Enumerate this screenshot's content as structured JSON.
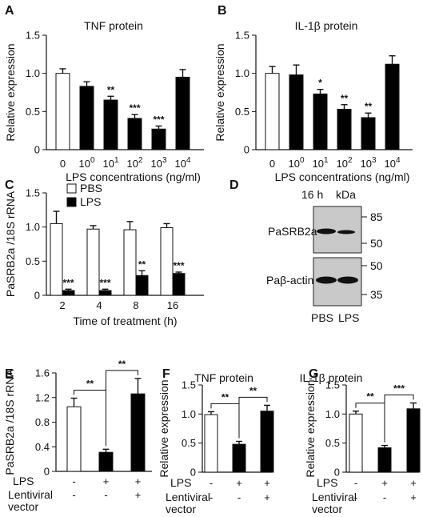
{
  "chart_data": [
    {
      "panel": "A",
      "type": "bar",
      "title": "TNF protein",
      "ylabel": "Relative expression",
      "xlabel": "LPS concentrations (ng/ml)",
      "categories": [
        "0",
        "10^0",
        "10^1",
        "10^2",
        "10^3",
        "10^4"
      ],
      "values": [
        1.0,
        0.83,
        0.65,
        0.41,
        0.27,
        0.95
      ],
      "errors": [
        0.06,
        0.06,
        0.05,
        0.05,
        0.04,
        0.1
      ],
      "fills": [
        "#ffffff",
        "#000000",
        "#000000",
        "#000000",
        "#000000",
        "#000000"
      ],
      "significance": [
        "",
        "",
        "**",
        "***",
        "***",
        ""
      ],
      "ylim": [
        0,
        1.5
      ],
      "yticks": [
        "0",
        "0.5",
        "1.0",
        "1.5"
      ]
    },
    {
      "panel": "B",
      "type": "bar",
      "title": "IL-1β protein",
      "ylabel": "Relative expression",
      "xlabel": "LPS concentrations (ng/ml)",
      "categories": [
        "0",
        "10^0",
        "10^1",
        "10^2",
        "10^3",
        "10^4"
      ],
      "values": [
        1.0,
        0.98,
        0.73,
        0.53,
        0.42,
        1.12
      ],
      "errors": [
        0.09,
        0.13,
        0.06,
        0.06,
        0.06,
        0.11
      ],
      "fills": [
        "#ffffff",
        "#000000",
        "#000000",
        "#000000",
        "#000000",
        "#000000"
      ],
      "significance": [
        "",
        "",
        "*",
        "**",
        "**",
        ""
      ],
      "ylim": [
        0,
        1.5
      ],
      "yticks": [
        "0",
        "0.5",
        "1.0",
        "1.5"
      ]
    },
    {
      "panel": "C",
      "type": "bar",
      "title": "",
      "ylabel": "PaSRB2a /18S rRNA",
      "xlabel": "Time of treatment (h)",
      "categories": [
        "2",
        "4",
        "8",
        "16"
      ],
      "series": [
        {
          "name": "PBS",
          "fill": "#ffffff",
          "values": [
            1.05,
            0.97,
            0.96,
            0.99
          ],
          "errors": [
            0.18,
            0.05,
            0.12,
            0.06
          ],
          "significance": [
            "",
            "",
            "",
            ""
          ]
        },
        {
          "name": "LPS",
          "fill": "#000000",
          "values": [
            0.07,
            0.07,
            0.29,
            0.32
          ],
          "errors": [
            0.02,
            0.02,
            0.07,
            0.02
          ],
          "significance": [
            "***",
            "***",
            "**",
            "***"
          ]
        }
      ],
      "legend_position": "top-left",
      "ylim": [
        0,
        1.5
      ],
      "yticks": [
        "0",
        "0.5",
        "1.0",
        "1.5"
      ]
    },
    {
      "panel": "E",
      "type": "bar",
      "title": "",
      "ylabel": "PaSRB2a /18S rRNA",
      "row_labels": [
        "LPS",
        "Lentiviral vector"
      ],
      "conditions": [
        [
          "-",
          "-"
        ],
        [
          "+",
          "-"
        ],
        [
          "+",
          "+"
        ]
      ],
      "values": [
        1.05,
        0.31,
        1.26
      ],
      "errors": [
        0.14,
        0.05,
        0.25
      ],
      "fills": [
        "#ffffff",
        "#000000",
        "#000000"
      ],
      "comparisons": [
        {
          "from": 0,
          "to": 1,
          "label": "**"
        },
        {
          "from": 1,
          "to": 2,
          "label": "**"
        }
      ],
      "ylim": [
        0,
        1.6
      ],
      "yticks": [
        "0",
        "0.4",
        "0.8",
        "1.2",
        "1.6"
      ]
    },
    {
      "panel": "F",
      "type": "bar",
      "title": "TNF protein",
      "ylabel": "Relative expression",
      "row_labels": [
        "LPS",
        "Lentiviral vector"
      ],
      "conditions": [
        [
          "-",
          "-"
        ],
        [
          "+",
          "-"
        ],
        [
          "+",
          "+"
        ]
      ],
      "values": [
        0.99,
        0.48,
        1.05
      ],
      "errors": [
        0.05,
        0.05,
        0.1
      ],
      "fills": [
        "#ffffff",
        "#000000",
        "#000000"
      ],
      "comparisons": [
        {
          "from": 0,
          "to": 1,
          "label": "**"
        },
        {
          "from": 1,
          "to": 2,
          "label": "**"
        }
      ],
      "ylim": [
        0,
        1.5
      ],
      "yticks": [
        "0",
        "0.5",
        "1.0",
        "1.5"
      ]
    },
    {
      "panel": "G",
      "type": "bar",
      "title": "IL-1β protein",
      "ylabel": "Relative expression",
      "row_labels": [
        "LPS",
        "Lentiviral vector"
      ],
      "conditions": [
        [
          "-",
          "-"
        ],
        [
          "+",
          "-"
        ],
        [
          "+",
          "+"
        ]
      ],
      "values": [
        1.0,
        0.42,
        1.09
      ],
      "errors": [
        0.05,
        0.04,
        0.1
      ],
      "fills": [
        "#ffffff",
        "#000000",
        "#000000"
      ],
      "comparisons": [
        {
          "from": 0,
          "to": 1,
          "label": "**"
        },
        {
          "from": 1,
          "to": 2,
          "label": "***"
        }
      ],
      "ylim": [
        0,
        1.5
      ],
      "yticks": [
        "0",
        "0.5",
        "1.0",
        "1.5"
      ]
    }
  ],
  "blot": {
    "panel": "D",
    "time_label": "16 h",
    "unit_label": "kDa",
    "lane_labels": [
      "PBS",
      "LPS"
    ],
    "rows": [
      {
        "protein": "PaSRB2a",
        "markers": [
          "85",
          "50"
        ],
        "band_intensity": [
          1.0,
          0.45
        ]
      },
      {
        "protein": "Paβ-actin",
        "markers": [
          "50",
          "35"
        ],
        "band_intensity": [
          1.0,
          1.0
        ]
      }
    ]
  }
}
